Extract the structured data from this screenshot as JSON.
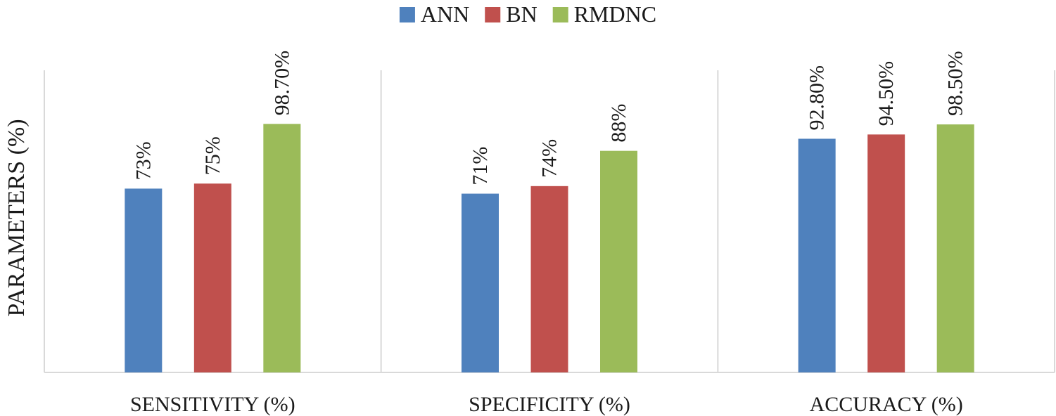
{
  "chart_data": {
    "type": "bar",
    "title": "",
    "xlabel": "",
    "ylabel": "PARAMETERS (%)",
    "categories": [
      "SENSITIVITY (%)",
      "SPECIFICITY (%)",
      "ACCURACY (%)"
    ],
    "series": [
      {
        "name": "ANN",
        "color": "#4f81bd",
        "values": [
          73,
          71,
          92.8
        ],
        "labels": [
          "73%",
          "71%",
          "92.80%"
        ]
      },
      {
        "name": "BN",
        "color": "#c0504d",
        "values": [
          75,
          74,
          94.5
        ],
        "labels": [
          "75%",
          "74%",
          "94.50%"
        ]
      },
      {
        "name": "RMDNC",
        "color": "#9bbb59",
        "values": [
          98.7,
          88,
          98.5
        ],
        "labels": [
          "98.70%",
          "88%",
          "98.50%"
        ]
      }
    ],
    "ylim": [
      0,
      120
    ],
    "grid": false,
    "legend_position": "top-center"
  }
}
